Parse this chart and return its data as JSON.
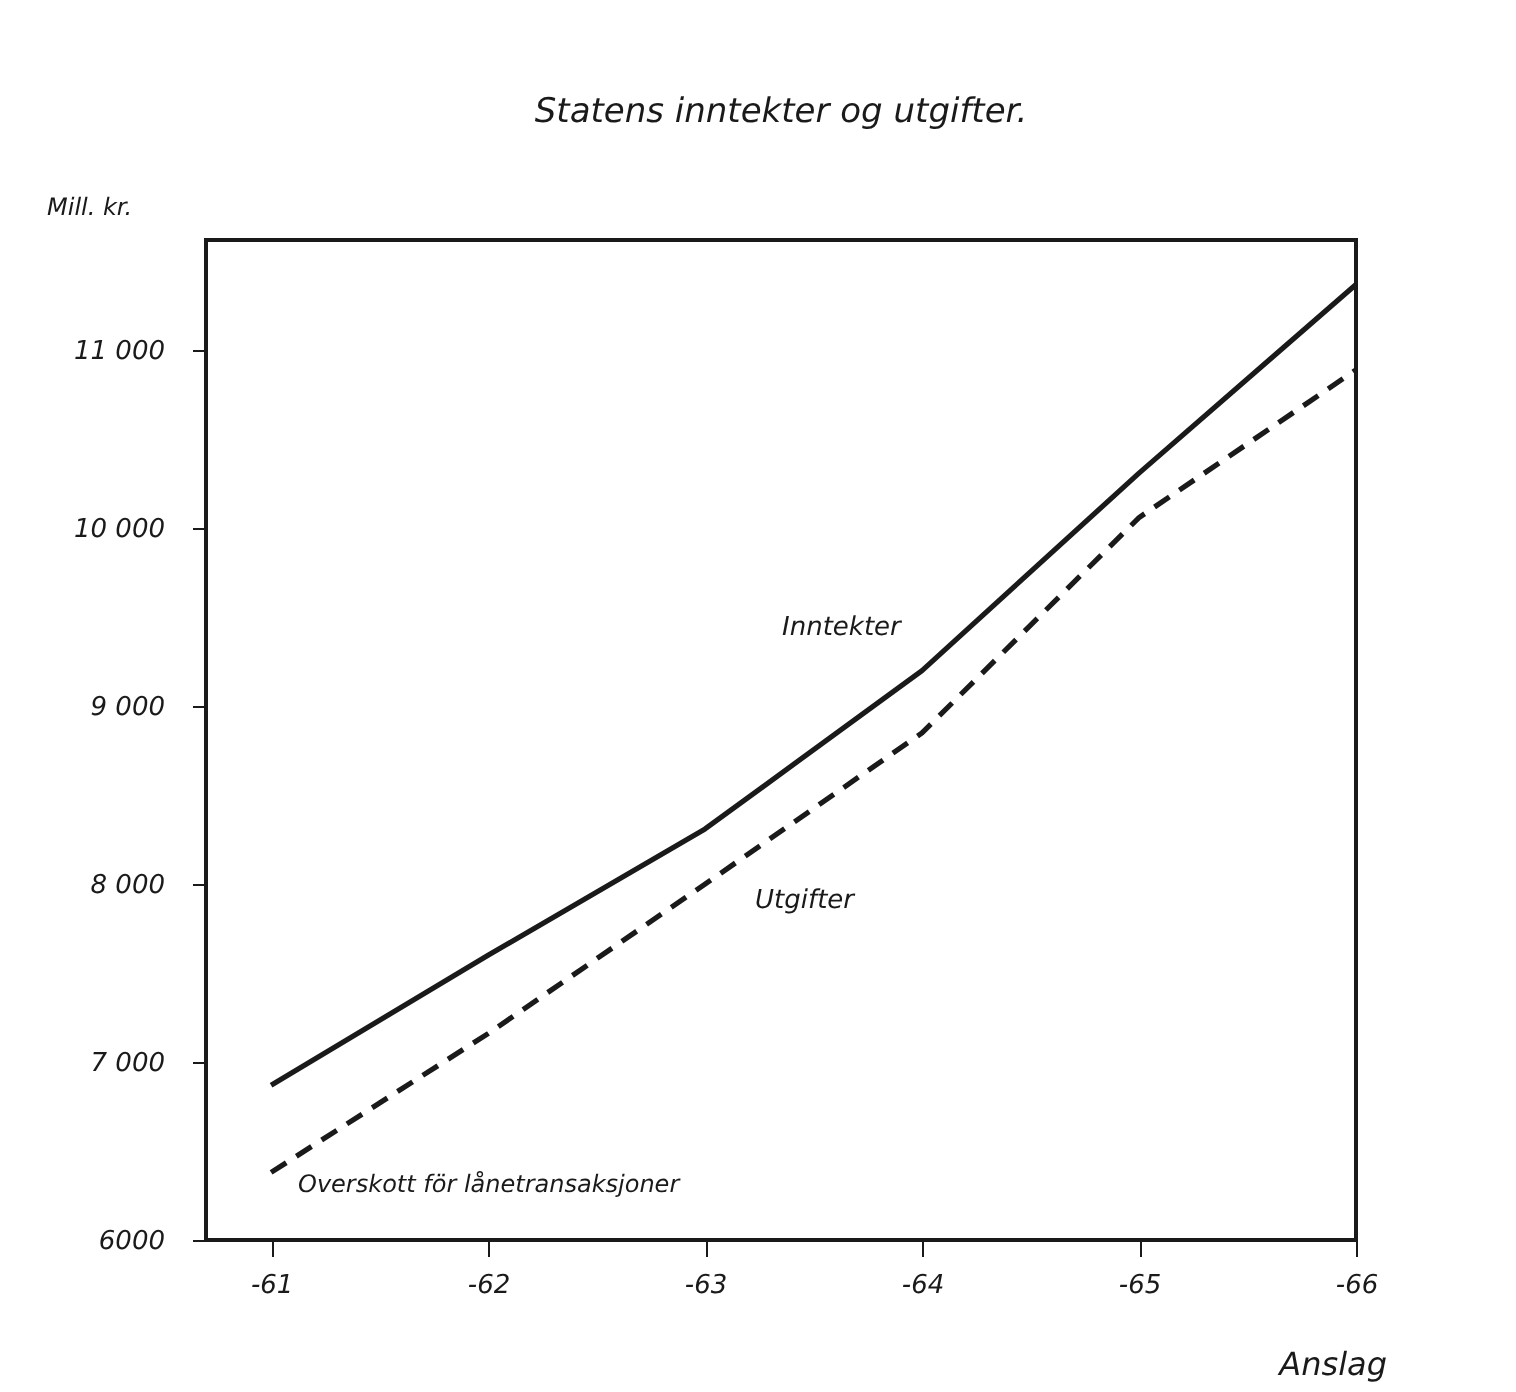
{
  "chart_data": {
    "type": "line",
    "title": "Statens inntekter og utgifter.",
    "xlabel": "Anslag",
    "ylabel": "Mill. kr.",
    "categories": [
      "-61",
      "-62",
      "-63",
      "-64",
      "-65",
      "-66"
    ],
    "series": [
      {
        "name": "Inntekter",
        "color": "#1a1a1a",
        "line_style": "solid",
        "values": [
          6870,
          7600,
          8310,
          9200,
          10310,
          11370
        ]
      },
      {
        "name": "Utgifter",
        "color": "#1a1a1a",
        "line_style": "dashed",
        "values": [
          6380,
          7160,
          8000,
          8850,
          10060,
          10890
        ]
      }
    ],
    "ylim": [
      6000,
      11620
    ],
    "yticks": [
      {
        "value": 6000,
        "label": "6000"
      },
      {
        "value": 7000,
        "label": "7 000"
      },
      {
        "value": 8000,
        "label": "8 000"
      },
      {
        "value": 9000,
        "label": "9 000"
      },
      {
        "value": 10000,
        "label": "10 000"
      },
      {
        "value": 11000,
        "label": "11 000"
      }
    ],
    "annotations": [
      "Overskott för lånetransaksjoner"
    ],
    "grid": false,
    "marker": "none"
  }
}
